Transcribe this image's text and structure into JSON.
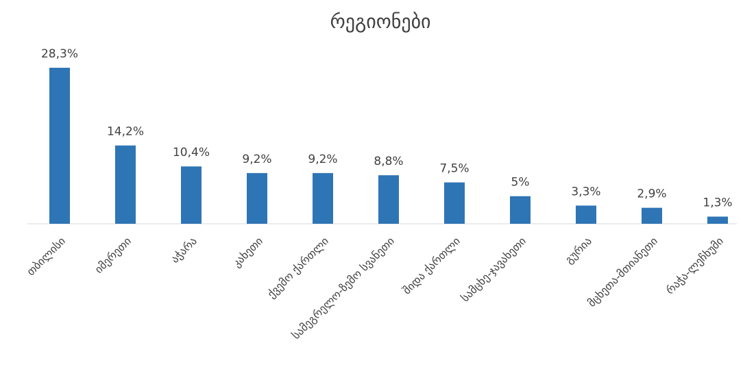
{
  "chart_data": {
    "type": "bar",
    "title": "რეგიონები",
    "categories": [
      "თბილისი",
      "იმერეთი",
      "აჭარა",
      "კახეთი",
      "ქვემო ქართლი",
      "სამეგრელო-ზემო სვანეთი",
      "შიდა ქართლი",
      "სამცხე-ჯავახეთი",
      "გურია",
      "მცხეთა-მთიანეთი",
      "რაჭა-ლეჩხუმი"
    ],
    "values": [
      28.3,
      14.2,
      10.4,
      9.2,
      9.2,
      8.8,
      7.5,
      5,
      3.3,
      2.9,
      1.3
    ],
    "value_labels": [
      "28,3%",
      "14,2%",
      "10,4%",
      "9,2%",
      "9,2%",
      "8,8%",
      "7,5%",
      "5%",
      "3,3%",
      "2,9%",
      "1,3%"
    ],
    "color": "#2e75b6"
  }
}
